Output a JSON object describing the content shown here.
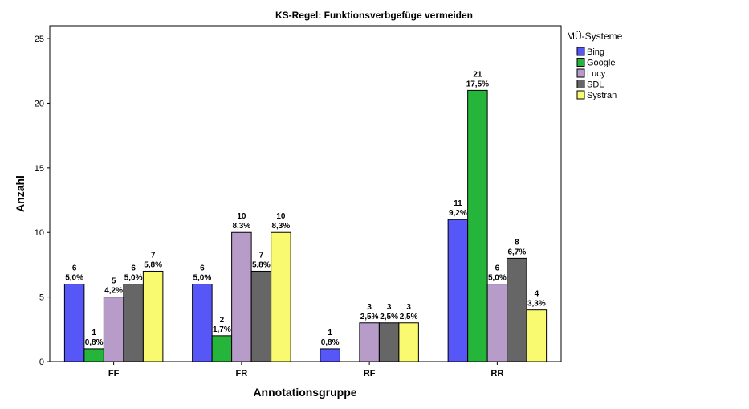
{
  "chart_data": {
    "type": "bar",
    "title": "KS-Regel: Funktionsverbgefüge vermeiden",
    "xlabel": "Annotationsgruppe",
    "ylabel": "Anzahl",
    "ylim": [
      0,
      26
    ],
    "yticks": [
      0,
      5,
      10,
      15,
      20,
      25
    ],
    "categories": [
      "FF",
      "FR",
      "RF",
      "RR"
    ],
    "legend": {
      "title": "MÜ-Systeme",
      "position": "right"
    },
    "grid": false,
    "series": [
      {
        "name": "Bing",
        "color": "#5757f8",
        "values": [
          6,
          6,
          1,
          11
        ],
        "labels": [
          [
            "6",
            "5,0%"
          ],
          [
            "6",
            "5,0%"
          ],
          [
            "1",
            "0,8%"
          ],
          [
            "11",
            "9,2%"
          ]
        ]
      },
      {
        "name": "Google",
        "color": "#25b53a",
        "values": [
          1,
          2,
          0,
          21
        ],
        "labels": [
          [
            "1",
            "0,8%"
          ],
          [
            "2",
            "1,7%"
          ],
          null,
          [
            "21",
            "17,5%"
          ]
        ]
      },
      {
        "name": "Lucy",
        "color": "#b79cc9",
        "values": [
          5,
          10,
          3,
          6
        ],
        "labels": [
          [
            "5",
            "4,2%"
          ],
          [
            "10",
            "8,3%"
          ],
          [
            "3",
            "2,5%"
          ],
          [
            "6",
            "5,0%"
          ]
        ]
      },
      {
        "name": "SDL",
        "color": "#666666",
        "values": [
          6,
          7,
          3,
          8
        ],
        "labels": [
          [
            "6",
            "5,0%"
          ],
          [
            "7",
            "5,8%"
          ],
          [
            "3",
            "2,5%"
          ],
          [
            "8",
            "6,7%"
          ]
        ]
      },
      {
        "name": "Systran",
        "color": "#fafa70",
        "values": [
          7,
          10,
          3,
          4
        ],
        "labels": [
          [
            "7",
            "5,8%"
          ],
          [
            "10",
            "8,3%"
          ],
          [
            "3",
            "2,5%"
          ],
          [
            "4",
            "3,3%"
          ]
        ]
      }
    ]
  }
}
